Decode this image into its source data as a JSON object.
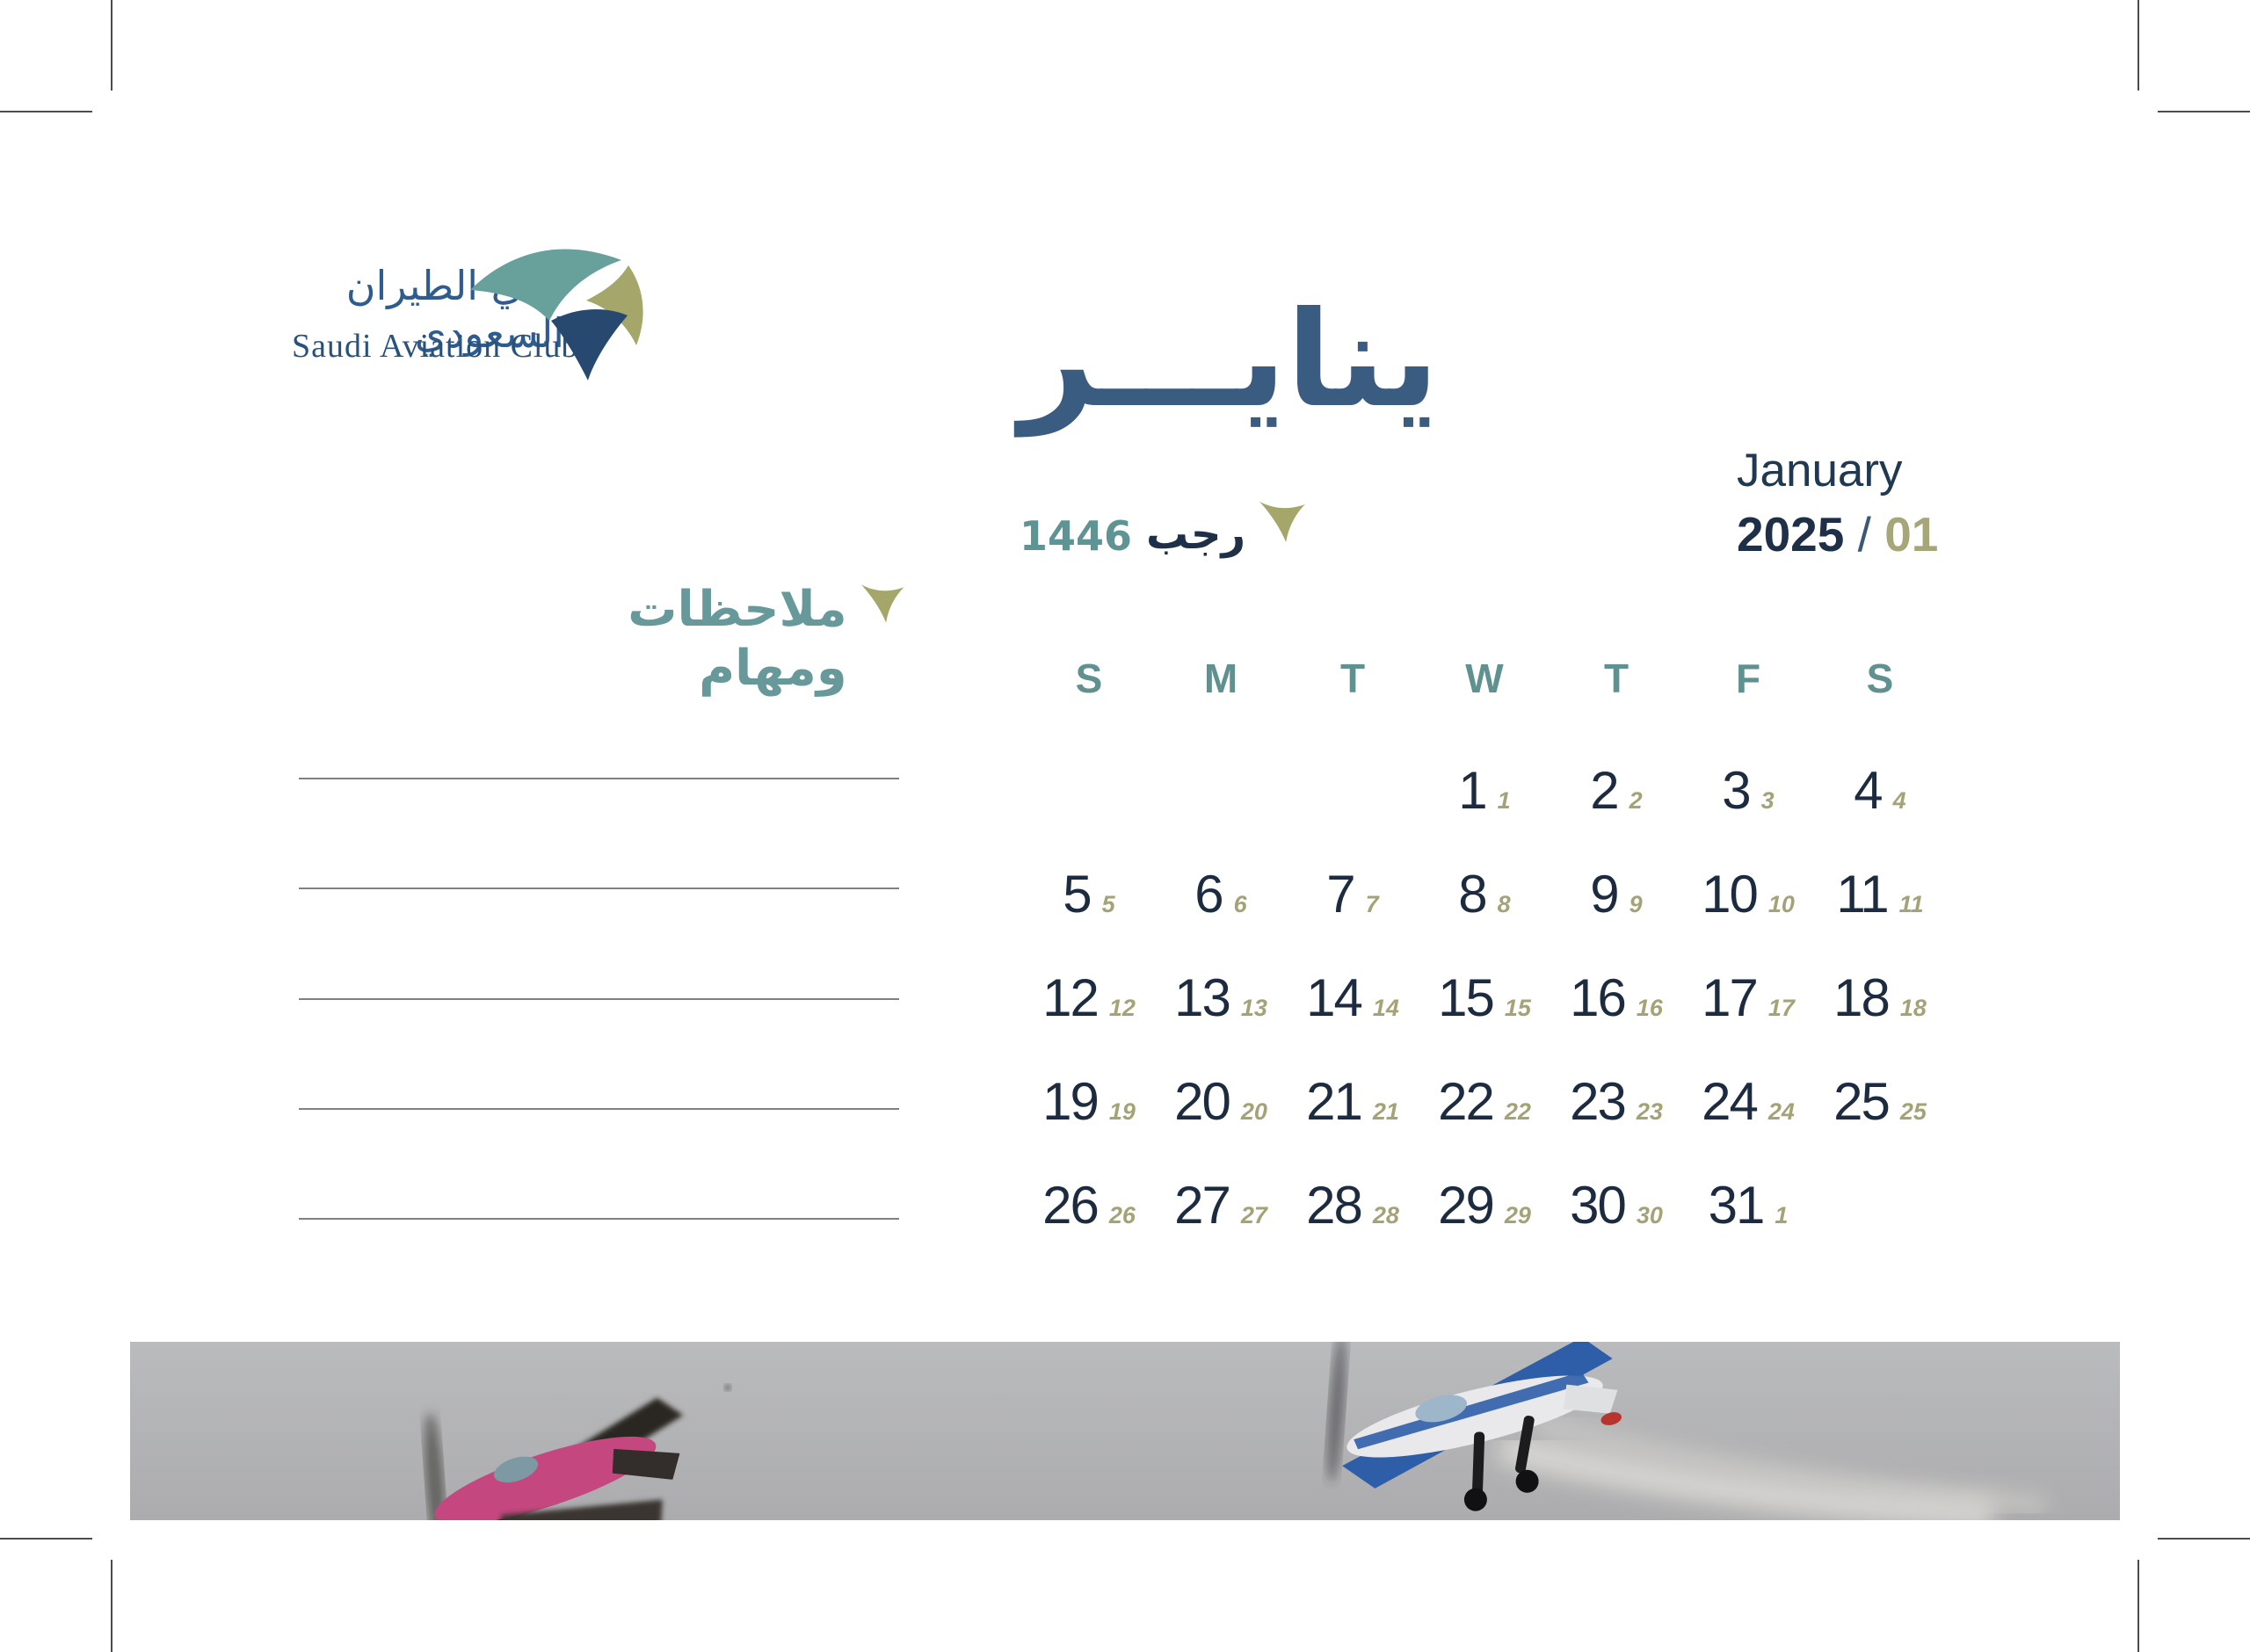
{
  "logo": {
    "arabic": "نادي الطيران السعودي",
    "english": "Saudi Aviation Club"
  },
  "header": {
    "month_arabic": "ينايـــر",
    "hijri_month": "رجب",
    "hijri_year": "1446",
    "month_english": "January",
    "year": "2025",
    "separator": "/",
    "month_number": "01"
  },
  "notes": {
    "heading": "ملاحظات ومهام",
    "line_count": 5
  },
  "calendar": {
    "weekday_headers": [
      "S",
      "M",
      "T",
      "W",
      "T",
      "F",
      "S"
    ],
    "weeks": [
      [
        null,
        null,
        null,
        {
          "gregorian": "1",
          "hijri": "1"
        },
        {
          "gregorian": "2",
          "hijri": "2"
        },
        {
          "gregorian": "3",
          "hijri": "3"
        },
        {
          "gregorian": "4",
          "hijri": "4"
        }
      ],
      [
        {
          "gregorian": "5",
          "hijri": "5"
        },
        {
          "gregorian": "6",
          "hijri": "6"
        },
        {
          "gregorian": "7",
          "hijri": "7"
        },
        {
          "gregorian": "8",
          "hijri": "8"
        },
        {
          "gregorian": "9",
          "hijri": "9"
        },
        {
          "gregorian": "10",
          "hijri": "10"
        },
        {
          "gregorian": "11",
          "hijri": "11"
        }
      ],
      [
        {
          "gregorian": "12",
          "hijri": "12"
        },
        {
          "gregorian": "13",
          "hijri": "13"
        },
        {
          "gregorian": "14",
          "hijri": "14"
        },
        {
          "gregorian": "15",
          "hijri": "15"
        },
        {
          "gregorian": "16",
          "hijri": "16"
        },
        {
          "gregorian": "17",
          "hijri": "17"
        },
        {
          "gregorian": "18",
          "hijri": "18"
        }
      ],
      [
        {
          "gregorian": "19",
          "hijri": "19"
        },
        {
          "gregorian": "20",
          "hijri": "20"
        },
        {
          "gregorian": "21",
          "hijri": "21"
        },
        {
          "gregorian": "22",
          "hijri": "22"
        },
        {
          "gregorian": "23",
          "hijri": "23"
        },
        {
          "gregorian": "24",
          "hijri": "24"
        },
        {
          "gregorian": "25",
          "hijri": "25"
        }
      ],
      [
        {
          "gregorian": "26",
          "hijri": "26"
        },
        {
          "gregorian": "27",
          "hijri": "27"
        },
        {
          "gregorian": "28",
          "hijri": "28"
        },
        {
          "gregorian": "29",
          "hijri": "29"
        },
        {
          "gregorian": "30",
          "hijri": "30"
        },
        {
          "gregorian": "31",
          "hijri": "1"
        },
        null
      ]
    ]
  },
  "photo": {
    "alt": "Two aerobatic stunt planes flying against a grey sky"
  },
  "colors": {
    "date_navy": "#1c2b40",
    "title_navy": "#3a5c80",
    "teal": "#5e9190",
    "olive": "#a3a377",
    "logo_teal": "#68a19c",
    "logo_olive": "#a5a669",
    "logo_navy": "#27496f",
    "line_gray": "#808080",
    "banner_gray": "#b4b4b6"
  }
}
